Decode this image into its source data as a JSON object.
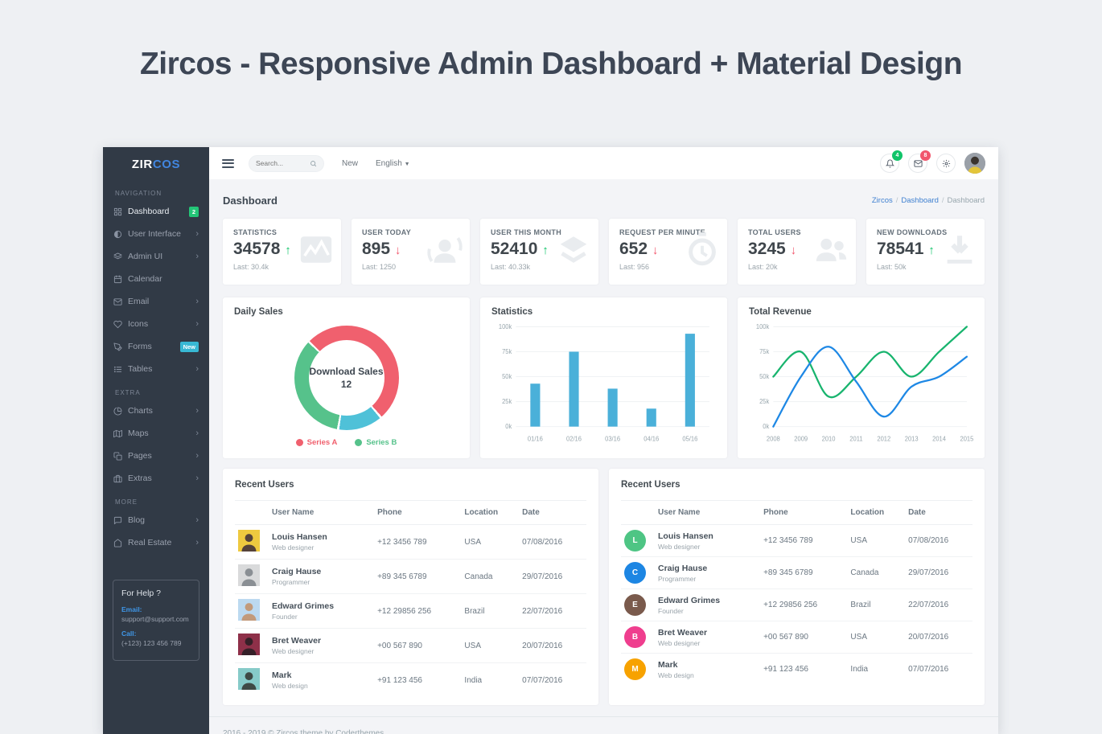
{
  "page": {
    "title": "Zircos - Responsive Admin Dashboard + Material Design"
  },
  "colors": {
    "success": "#10c469",
    "danger": "#f1556c",
    "primary": "#188ae2",
    "sidebar_bg": "#313a46",
    "bar_blue": "#4ab0d9",
    "line_green": "#18b46e",
    "line_blue": "#1e88e5"
  },
  "sidebar": {
    "logo": {
      "part1": "ZIR",
      "part2": "COS"
    },
    "sections": [
      {
        "label": "NAVIGATION",
        "items": [
          {
            "label": "Dashboard",
            "icon": "dashboard-icon",
            "badge": "2",
            "badge_color": "#23c577",
            "active": true
          },
          {
            "label": "User Interface",
            "icon": "contrast-icon",
            "chevron": true
          },
          {
            "label": "Admin UI",
            "icon": "layers-icon",
            "chevron": true
          },
          {
            "label": "Calendar",
            "icon": "calendar-icon"
          },
          {
            "label": "Email",
            "icon": "mail-icon",
            "chevron": true
          },
          {
            "label": "Icons",
            "icon": "heart-icon",
            "chevron": true
          },
          {
            "label": "Forms",
            "icon": "pen-icon",
            "badge": "New",
            "badge_color": "#38b8d4"
          },
          {
            "label": "Tables",
            "icon": "list-icon",
            "chevron": true
          }
        ]
      },
      {
        "label": "EXTRA",
        "items": [
          {
            "label": "Charts",
            "icon": "pie-chart-icon",
            "chevron": true
          },
          {
            "label": "Maps",
            "icon": "map-icon",
            "chevron": true
          },
          {
            "label": "Pages",
            "icon": "copy-icon",
            "chevron": true
          },
          {
            "label": "Extras",
            "icon": "briefcase-icon",
            "chevron": true
          }
        ]
      },
      {
        "label": "MORE",
        "items": [
          {
            "label": "Blog",
            "icon": "chat-icon",
            "chevron": true
          },
          {
            "label": "Real Estate",
            "icon": "home-icon",
            "chevron": true
          }
        ]
      }
    ],
    "help": {
      "title": "For Help ?",
      "email_label": "Email:",
      "email": "support@support.com",
      "call_label": "Call:",
      "phone": "(+123) 123 456 789"
    }
  },
  "topbar": {
    "search_placeholder": "Search...",
    "new_label": "New",
    "language": "English",
    "notif_badge": "4",
    "mail_badge": "8"
  },
  "header": {
    "title": "Dashboard",
    "breadcrumb": [
      "Zircos",
      "Dashboard",
      "Dashboard"
    ]
  },
  "stats_cards": [
    {
      "label": "STATISTICS",
      "value": "34578",
      "trend": "up",
      "last": "Last: 30.4k",
      "icon": "chart-image-icon"
    },
    {
      "label": "USER TODAY",
      "value": "895",
      "trend": "down",
      "last": "Last: 1250",
      "icon": "user-sync-icon"
    },
    {
      "label": "USER THIS MONTH",
      "value": "52410",
      "trend": "up",
      "last": "Last: 40.33k",
      "icon": "stack-icon"
    },
    {
      "label": "REQUEST PER MINUTE",
      "value": "652",
      "trend": "down",
      "last": "Last: 956",
      "icon": "timer-icon"
    },
    {
      "label": "TOTAL USERS",
      "value": "3245",
      "trend": "down",
      "last": "Last: 20k",
      "icon": "users-icon"
    },
    {
      "label": "NEW DOWNLOADS",
      "value": "78541",
      "trend": "up",
      "last": "Last: 50k",
      "icon": "download-icon"
    }
  ],
  "chart_data": [
    {
      "type": "donut",
      "title": "Daily Sales",
      "center_label": "Download Sales",
      "center_value": "12",
      "start_angle": -45,
      "segments": [
        {
          "name": "Series A",
          "value": 51.5,
          "color": "#f0606e"
        },
        {
          "name": "",
          "value": 14,
          "color": "#4fc1d8"
        },
        {
          "name": "Series B",
          "value": 34.5,
          "color": "#56c28b"
        }
      ],
      "legend": [
        {
          "name": "Series A",
          "color": "#f0606e"
        },
        {
          "name": "Series B",
          "color": "#56c28b"
        }
      ]
    },
    {
      "type": "bar",
      "title": "Statistics",
      "categories": [
        "01/16",
        "02/16",
        "03/16",
        "04/16",
        "05/16"
      ],
      "values": [
        43,
        75,
        38,
        18,
        93
      ],
      "ylim": [
        0,
        100
      ],
      "yticks": [
        "0k",
        "25k",
        "50k",
        "75k",
        "100k"
      ],
      "color": "#4ab0d9",
      "grid": true
    },
    {
      "type": "line",
      "title": "Total Revenue",
      "x": [
        2008,
        2009,
        2010,
        2011,
        2012,
        2013,
        2014,
        2015
      ],
      "series": [
        {
          "name": "revenue-green",
          "color": "#18b46e",
          "values": [
            50,
            75,
            30,
            50,
            75,
            50,
            75,
            100
          ]
        },
        {
          "name": "revenue-blue",
          "color": "#1e88e5",
          "values": [
            0,
            50,
            80,
            45,
            10,
            40,
            50,
            70
          ]
        }
      ],
      "ylim": [
        0,
        100
      ],
      "yticks": [
        "0k",
        "25k",
        "50k",
        "75k",
        "100k"
      ],
      "grid": true
    }
  ],
  "recent_users": {
    "title": "Recent Users",
    "columns": [
      "User Name",
      "Phone",
      "Location",
      "Date"
    ],
    "rows": [
      {
        "name": "Louis Hansen",
        "role": "Web designer",
        "phone": "+12 3456 789",
        "location": "USA",
        "date": "07/08/2016",
        "initial": "L",
        "initial_color": "#4ec584",
        "photo_bg": "#eec93f",
        "photo_fg": "#54423a"
      },
      {
        "name": "Craig Hause",
        "role": "Programmer",
        "phone": "+89 345 6789",
        "location": "Canada",
        "date": "29/07/2016",
        "initial": "C",
        "initial_color": "#1d86e3",
        "photo_bg": "#d9dadb",
        "photo_fg": "#8a8f94"
      },
      {
        "name": "Edward Grimes",
        "role": "Founder",
        "phone": "+12 29856 256",
        "location": "Brazil",
        "date": "22/07/2016",
        "initial": "E",
        "initial_color": "#7a5a4c",
        "photo_bg": "#bcd9f0",
        "photo_fg": "#c29a7b"
      },
      {
        "name": "Bret Weaver",
        "role": "Web designer",
        "phone": "+00 567 890",
        "location": "USA",
        "date": "20/07/2016",
        "initial": "B",
        "initial_color": "#ef3e8e",
        "photo_bg": "#8e3049",
        "photo_fg": "#352028"
      },
      {
        "name": "Mark",
        "role": "Web design",
        "phone": "+91 123 456",
        "location": "India",
        "date": "07/07/2016",
        "initial": "M",
        "initial_color": "#f7a200",
        "photo_bg": "#86cbc9",
        "photo_fg": "#3e4a45"
      }
    ]
  },
  "footer": {
    "text": "2016 - 2019 © Zircos theme by Coderthemes."
  }
}
